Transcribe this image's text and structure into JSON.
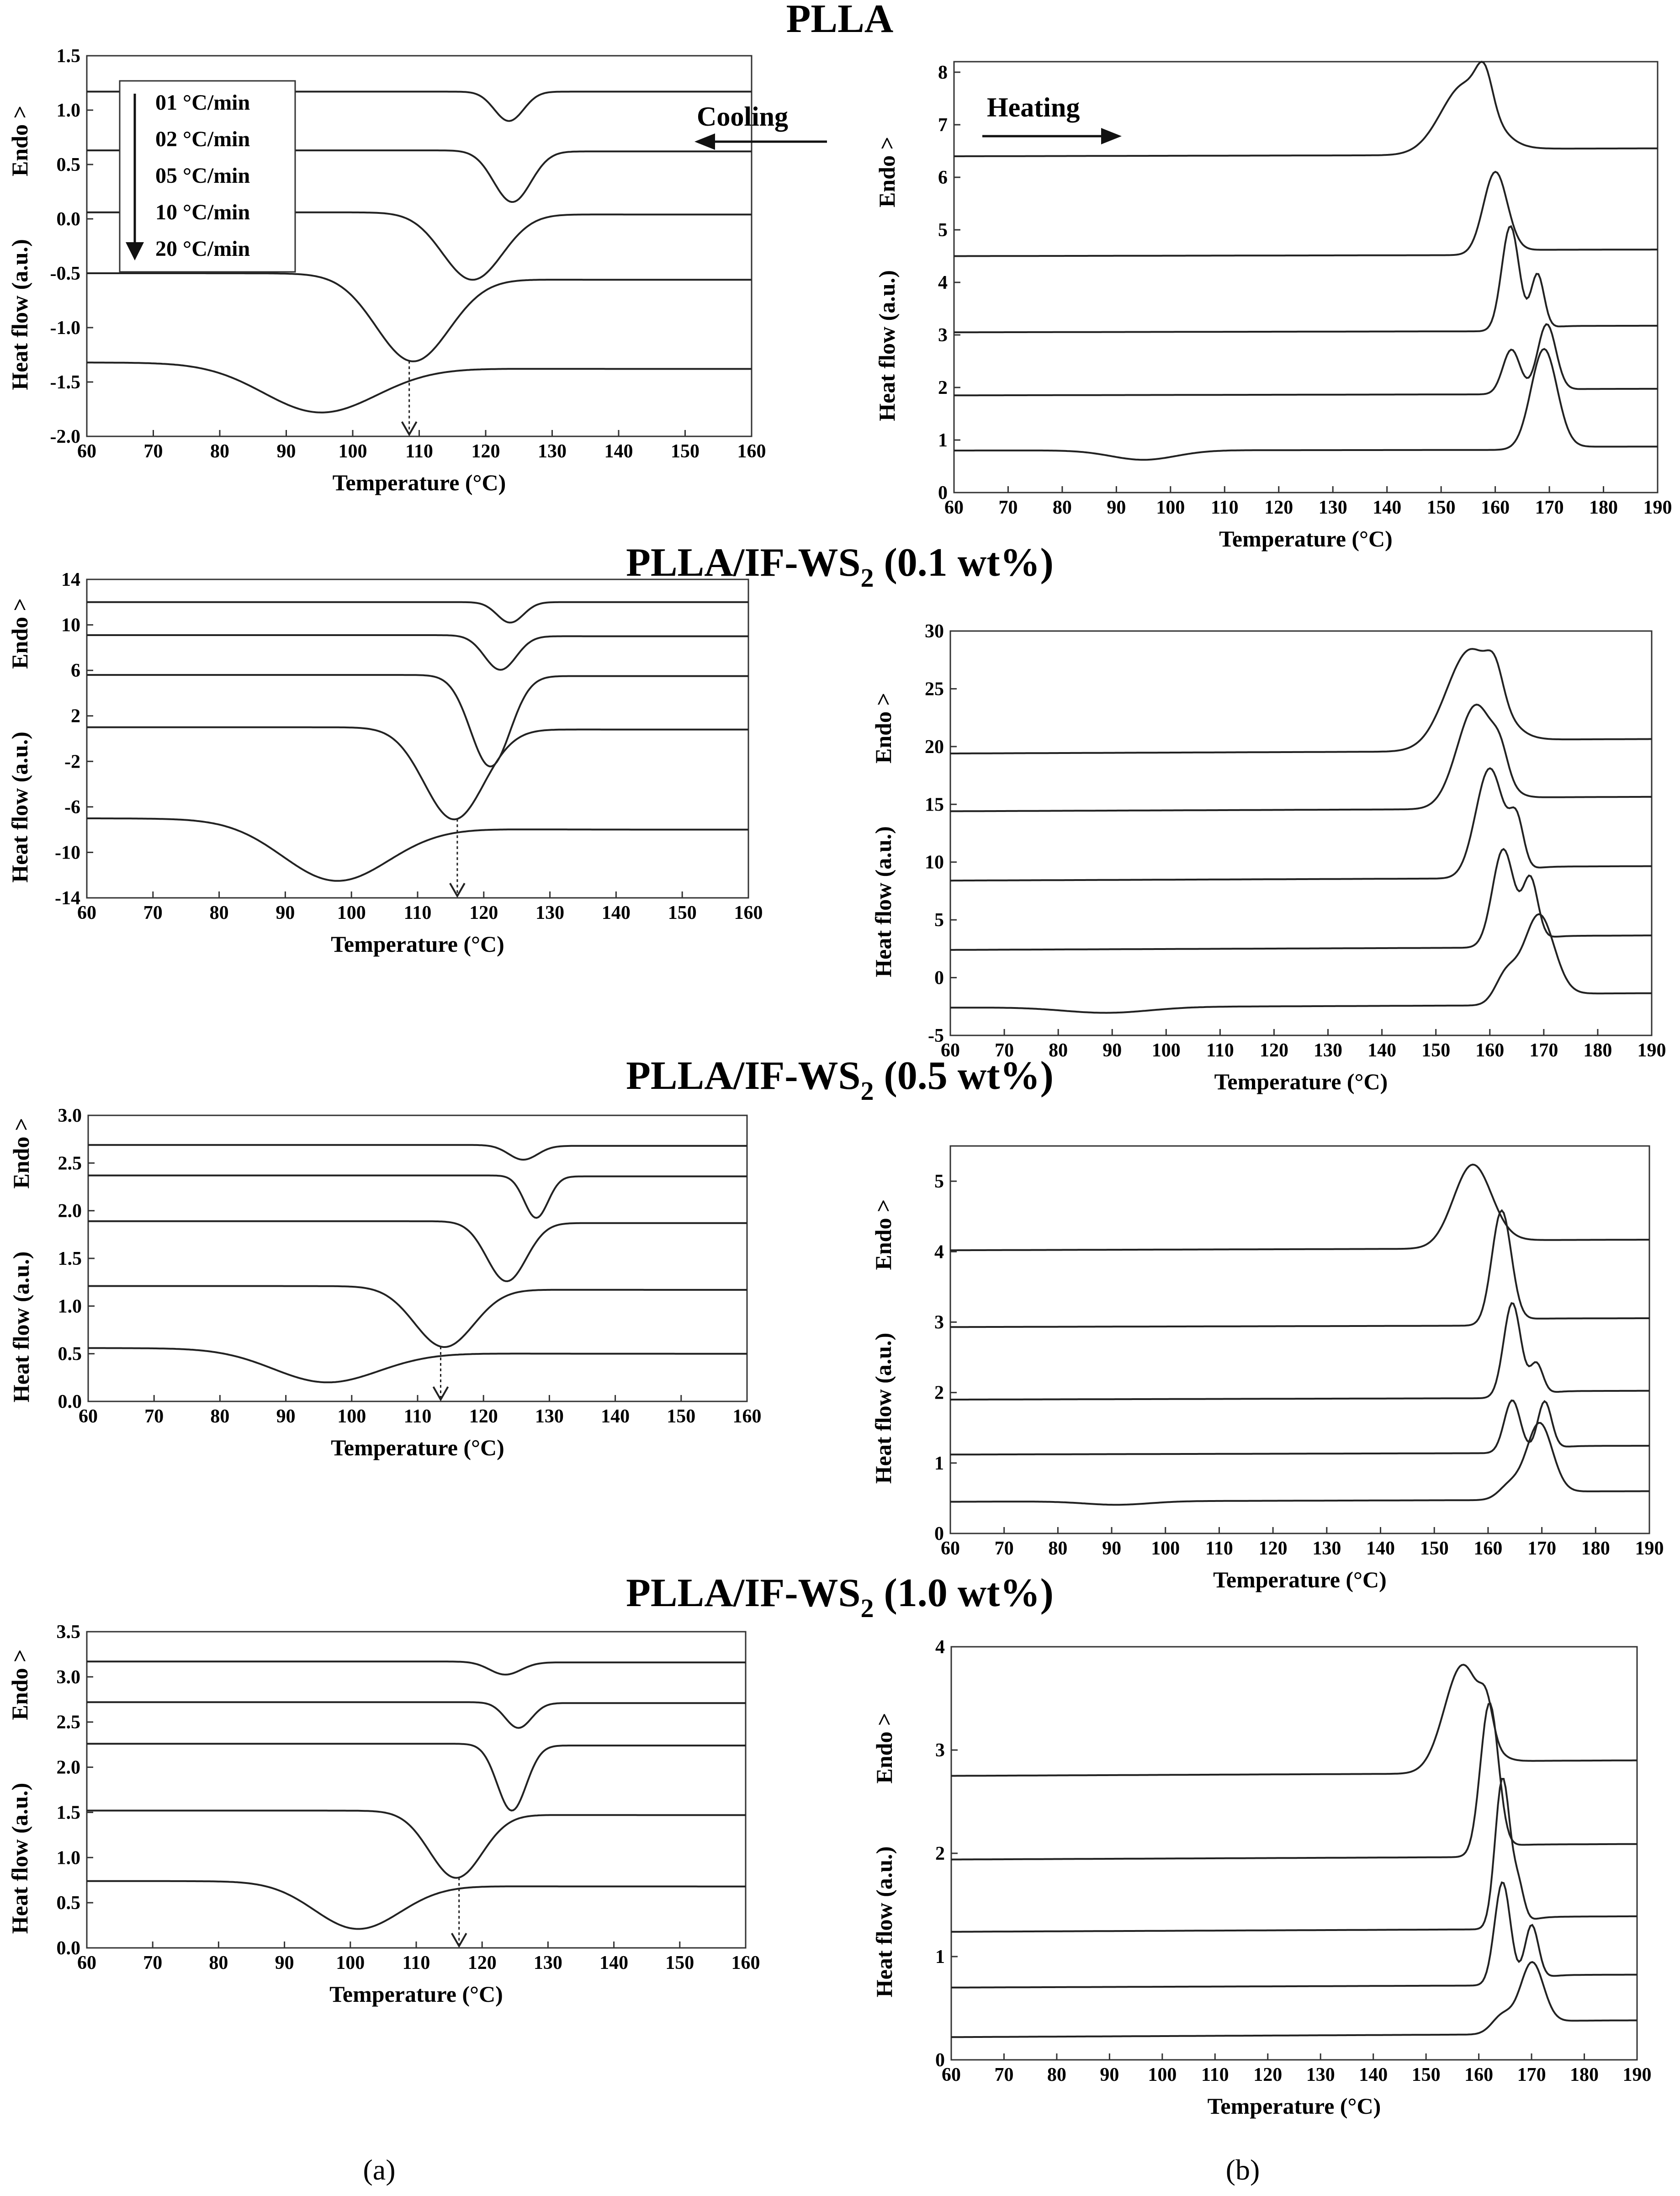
{
  "figure": {
    "panel_labels": [
      "(a)",
      "(b)"
    ],
    "colors": {
      "curve": "#222222",
      "axis": "#333333",
      "background": "#ffffff"
    },
    "legend": {
      "entries": [
        "01 °C/min",
        "02 °C/min",
        "05 °C/min",
        "10 °C/min",
        "20 °C/min"
      ]
    },
    "annotations": {
      "cooling": "Cooling",
      "heating": "Heating"
    }
  },
  "chart_data": [
    {
      "type": "line",
      "row": 0,
      "column": "a",
      "title": "PLLA",
      "title_subscript": "",
      "title_suffix": "",
      "xlabel": "Temperature (°C)",
      "ylabel": "Heat flow (a.u.)",
      "ylabel_extra": "Endo >",
      "xlim": [
        60,
        160
      ],
      "ylim": [
        -2.0,
        1.5
      ],
      "xticks": [
        60,
        70,
        80,
        90,
        100,
        110,
        120,
        130,
        140,
        150,
        160
      ],
      "yticks": [
        -2.0,
        -1.5,
        -1.0,
        -0.5,
        0.0,
        0.5,
        1.0,
        1.5
      ],
      "ytick_labels": [
        "-2.0",
        "-1.5",
        "-1.0",
        "-0.5",
        "0.0",
        "0.5",
        "1.0",
        "1.5"
      ],
      "arrow_marker_x": 108.5,
      "series": [
        {
          "name": "01 °C/min",
          "base_left": 1.17,
          "base_right": 1.17,
          "peaks": [
            {
              "x": 123.5,
              "amp": -0.27,
              "width": 2.2
            }
          ]
        },
        {
          "name": "02 °C/min",
          "base_left": 0.63,
          "base_right": 0.62,
          "peaks": [
            {
              "x": 124.0,
              "amp": -0.47,
              "width": 2.8
            }
          ]
        },
        {
          "name": "05 °C/min",
          "base_left": 0.06,
          "base_right": 0.04,
          "peaks": [
            {
              "x": 118.0,
              "amp": -0.61,
              "width": 4.5
            }
          ]
        },
        {
          "name": "10 °C/min",
          "base_left": -0.5,
          "base_right": -0.56,
          "peaks": [
            {
              "x": 109.0,
              "amp": -0.78,
              "width": 5.5
            }
          ]
        },
        {
          "name": "20 °C/min",
          "base_left": -1.32,
          "base_right": -1.38,
          "peaks": [
            {
              "x": 95.0,
              "amp": -0.43,
              "width": 8.5
            }
          ]
        }
      ]
    },
    {
      "type": "line",
      "row": 0,
      "column": "b",
      "xlabel": "Temperature (°C)",
      "ylabel": "Heat flow (a.u.)",
      "ylabel_extra": "Endo >",
      "xlim": [
        60,
        190
      ],
      "ylim": [
        0,
        8.2
      ],
      "xticks": [
        60,
        70,
        80,
        90,
        100,
        110,
        120,
        130,
        140,
        150,
        160,
        170,
        180,
        190
      ],
      "yticks": [
        0,
        1,
        2,
        3,
        4,
        5,
        6,
        7,
        8
      ],
      "ytick_labels": [
        "0",
        "1",
        "2",
        "3",
        "4",
        "5",
        "6",
        "7",
        "8"
      ],
      "series": [
        {
          "name": "01 °C/min",
          "base_left": 6.4,
          "base_right": 6.52,
          "peaks": [
            {
              "x": 154.5,
              "amp": 1.35,
              "width": 4.5
            },
            {
              "x": 158.0,
              "amp": 0.7,
              "width": 1.5
            }
          ]
        },
        {
          "name": "02 °C/min",
          "base_left": 4.5,
          "base_right": 4.6,
          "peaks": [
            {
              "x": 160.0,
              "amp": 1.55,
              "width": 2.2
            }
          ]
        },
        {
          "name": "05 °C/min",
          "base_left": 3.05,
          "base_right": 3.15,
          "peaks": [
            {
              "x": 162.8,
              "amp": 2.0,
              "width": 1.6
            },
            {
              "x": 167.8,
              "amp": 1.05,
              "width": 1.2
            }
          ]
        },
        {
          "name": "10 °C/min",
          "base_left": 1.85,
          "base_right": 1.95,
          "peaks": [
            {
              "x": 163.0,
              "amp": 0.85,
              "width": 1.6
            },
            {
              "x": 169.5,
              "amp": 1.3,
              "width": 1.7
            }
          ]
        },
        {
          "name": "20 °C/min",
          "base_left": 0.8,
          "base_right": 0.86,
          "peaks": [
            {
              "x": 95.0,
              "amp": -0.18,
              "width": 6.0
            },
            {
              "x": 169.0,
              "amp": 1.9,
              "width": 2.4
            }
          ]
        }
      ]
    },
    {
      "type": "line",
      "row": 1,
      "column": "a",
      "title": "PLLA/IF-WS",
      "title_subscript": "2",
      "title_suffix": " (0.1 wt%)",
      "xlabel": "Temperature (°C)",
      "ylabel": "Heat flow (a.u.)",
      "ylabel_extra": "Endo >",
      "xlim": [
        60,
        160
      ],
      "ylim": [
        -14,
        14
      ],
      "xticks": [
        60,
        70,
        80,
        90,
        100,
        110,
        120,
        130,
        140,
        150,
        160
      ],
      "yticks": [
        -14,
        -10,
        -6,
        -2,
        2,
        6,
        10,
        14
      ],
      "ytick_labels": [
        "-14",
        "-10",
        "-6",
        "-2",
        "2",
        "6",
        "10",
        "14"
      ],
      "arrow_marker_x": 116.0,
      "series": [
        {
          "name": "01 °C/min",
          "base_left": 12.0,
          "base_right": 12.0,
          "peaks": [
            {
              "x": 124.0,
              "amp": -1.8,
              "width": 2.0
            }
          ]
        },
        {
          "name": "02 °C/min",
          "base_left": 9.1,
          "base_right": 9.0,
          "peaks": [
            {
              "x": 122.5,
              "amp": -3.0,
              "width": 2.4
            }
          ]
        },
        {
          "name": "05 °C/min",
          "base_left": 5.6,
          "base_right": 5.5,
          "peaks": [
            {
              "x": 121.0,
              "amp": -8.0,
              "width": 3.0
            }
          ]
        },
        {
          "name": "10 °C/min",
          "base_left": 1.0,
          "base_right": 0.8,
          "peaks": [
            {
              "x": 115.5,
              "amp": -8.0,
              "width": 4.5
            }
          ]
        },
        {
          "name": "20 °C/min",
          "base_left": -7.0,
          "base_right": -8.0,
          "peaks": [
            {
              "x": 97.5,
              "amp": -5.0,
              "width": 8.0
            }
          ]
        }
      ]
    },
    {
      "type": "line",
      "row": 1,
      "column": "b",
      "xlabel": "Temperature (°C)",
      "ylabel": "Heat flow (a.u.)",
      "ylabel_extra": "Endo >",
      "xlim": [
        60,
        190
      ],
      "ylim": [
        -5,
        30
      ],
      "xticks": [
        60,
        70,
        80,
        90,
        100,
        110,
        120,
        130,
        140,
        150,
        160,
        170,
        180,
        190
      ],
      "yticks": [
        -5,
        0,
        5,
        10,
        15,
        20,
        25,
        30
      ],
      "ytick_labels": [
        "-5",
        "0",
        "5",
        "10",
        "15",
        "20",
        "25",
        "30"
      ],
      "series": [
        {
          "name": "01 °C/min",
          "base_left": 19.4,
          "base_right": 20.4,
          "peaks": [
            {
              "x": 156.5,
              "amp": 8.8,
              "width": 4.5
            },
            {
              "x": 161.0,
              "amp": 2.5,
              "width": 1.5
            }
          ]
        },
        {
          "name": "02 °C/min",
          "base_left": 14.4,
          "base_right": 15.4,
          "peaks": [
            {
              "x": 157.5,
              "amp": 9.0,
              "width": 3.5
            },
            {
              "x": 162.0,
              "amp": 2.0,
              "width": 1.4
            }
          ]
        },
        {
          "name": "05 °C/min",
          "base_left": 8.4,
          "base_right": 9.4,
          "peaks": [
            {
              "x": 160.0,
              "amp": 9.5,
              "width": 2.6
            },
            {
              "x": 165.0,
              "amp": 4.0,
              "width": 1.3
            }
          ]
        },
        {
          "name": "10 °C/min",
          "base_left": 2.4,
          "base_right": 3.4,
          "peaks": [
            {
              "x": 162.5,
              "amp": 8.5,
              "width": 2.0
            },
            {
              "x": 167.5,
              "amp": 5.5,
              "width": 1.4
            }
          ]
        },
        {
          "name": "20 °C/min",
          "base_left": -2.6,
          "base_right": -1.6,
          "peaks": [
            {
              "x": 89.0,
              "amp": -0.5,
              "width": 8.0
            },
            {
              "x": 163.0,
              "amp": 2.5,
              "width": 2.0
            },
            {
              "x": 169.0,
              "amp": 7.5,
              "width": 2.8
            }
          ]
        }
      ]
    },
    {
      "type": "line",
      "row": 2,
      "column": "a",
      "title": "PLLA/IF-WS",
      "title_subscript": "2",
      "title_suffix": " (0.5 wt%)",
      "xlabel": "Temperature (°C)",
      "ylabel": "Heat flow (a.u.)",
      "ylabel_extra": "Endo >",
      "xlim": [
        60,
        160
      ],
      "ylim": [
        0.0,
        3.0
      ],
      "xticks": [
        60,
        70,
        80,
        90,
        100,
        110,
        120,
        130,
        140,
        150,
        160
      ],
      "yticks": [
        0.0,
        0.5,
        1.0,
        1.5,
        2.0,
        2.5,
        3.0
      ],
      "ytick_labels": [
        "0.0",
        "0.5",
        "1.0",
        "1.5",
        "2.0",
        "2.5",
        "3.0"
      ],
      "arrow_marker_x": 113.5,
      "series": [
        {
          "name": "01 °C/min",
          "base_left": 2.69,
          "base_right": 2.68,
          "peaks": [
            {
              "x": 126.0,
              "amp": -0.15,
              "width": 2.2
            }
          ]
        },
        {
          "name": "02 °C/min",
          "base_left": 2.37,
          "base_right": 2.36,
          "peaks": [
            {
              "x": 128.0,
              "amp": -0.44,
              "width": 1.8
            }
          ]
        },
        {
          "name": "05 °C/min",
          "base_left": 1.89,
          "base_right": 1.87,
          "peaks": [
            {
              "x": 123.5,
              "amp": -0.62,
              "width": 3.0
            }
          ]
        },
        {
          "name": "10 °C/min",
          "base_left": 1.21,
          "base_right": 1.17,
          "peaks": [
            {
              "x": 114.0,
              "amp": -0.62,
              "width": 4.5
            }
          ]
        },
        {
          "name": "20 °C/min",
          "base_left": 0.56,
          "base_right": 0.5,
          "peaks": [
            {
              "x": 96.0,
              "amp": -0.33,
              "width": 8.0
            }
          ]
        }
      ]
    },
    {
      "type": "line",
      "row": 2,
      "column": "b",
      "xlabel": "Temperature (°C)",
      "ylabel": "Heat flow (a.u.)",
      "ylabel_extra": "Endo >",
      "xlim": [
        60,
        190
      ],
      "ylim": [
        0,
        5.5
      ],
      "xticks": [
        60,
        70,
        80,
        90,
        100,
        110,
        120,
        130,
        140,
        150,
        160,
        170,
        180,
        190
      ],
      "yticks": [
        0,
        1,
        2,
        3,
        4,
        5
      ],
      "ytick_labels": [
        "0",
        "1",
        "2",
        "3",
        "4",
        "5"
      ],
      "series": [
        {
          "name": "01 °C/min",
          "base_left": 4.02,
          "base_right": 4.14,
          "peaks": [
            {
              "x": 157.0,
              "amp": 1.15,
              "width": 3.5
            }
          ]
        },
        {
          "name": "02 °C/min",
          "base_left": 2.93,
          "base_right": 3.03,
          "peaks": [
            {
              "x": 162.5,
              "amp": 1.6,
              "width": 1.8
            }
          ]
        },
        {
          "name": "05 °C/min",
          "base_left": 1.9,
          "base_right": 2.0,
          "peaks": [
            {
              "x": 164.5,
              "amp": 1.35,
              "width": 1.6
            },
            {
              "x": 169.0,
              "amp": 0.45,
              "width": 1.2
            }
          ]
        },
        {
          "name": "10 °C/min",
          "base_left": 1.12,
          "base_right": 1.22,
          "peaks": [
            {
              "x": 164.5,
              "amp": 0.75,
              "width": 1.5
            },
            {
              "x": 170.5,
              "amp": 0.7,
              "width": 1.3
            }
          ]
        },
        {
          "name": "20 °C/min",
          "base_left": 0.45,
          "base_right": 0.57,
          "peaks": [
            {
              "x": 91.0,
              "amp": -0.05,
              "width": 6.0
            },
            {
              "x": 164.0,
              "amp": 0.2,
              "width": 2.0
            },
            {
              "x": 169.5,
              "amp": 1.05,
              "width": 2.4
            }
          ]
        }
      ]
    },
    {
      "type": "line",
      "row": 3,
      "column": "a",
      "title": "PLLA/IF-WS",
      "title_subscript": "2",
      "title_suffix": " (1.0 wt%)",
      "xlabel": "Temperature (°C)",
      "ylabel": "Heat flow (a.u.)",
      "ylabel_extra": "Endo >",
      "xlim": [
        60,
        160
      ],
      "ylim": [
        0.0,
        3.5
      ],
      "xticks": [
        60,
        70,
        80,
        90,
        100,
        110,
        120,
        130,
        140,
        150,
        160
      ],
      "yticks": [
        0.0,
        0.5,
        1.0,
        1.5,
        2.0,
        2.5,
        3.0,
        3.5
      ],
      "ytick_labels": [
        "0.0",
        "0.5",
        "1.0",
        "1.5",
        "2.0",
        "2.5",
        "3.0",
        "3.5"
      ],
      "arrow_marker_x": 116.5,
      "series": [
        {
          "name": "01 °C/min",
          "base_left": 3.17,
          "base_right": 3.16,
          "peaks": [
            {
              "x": 123.5,
              "amp": -0.14,
              "width": 2.4
            }
          ]
        },
        {
          "name": "02 °C/min",
          "base_left": 2.72,
          "base_right": 2.71,
          "peaks": [
            {
              "x": 125.5,
              "amp": -0.28,
              "width": 2.0
            }
          ]
        },
        {
          "name": "05 °C/min",
          "base_left": 2.26,
          "base_right": 2.24,
          "peaks": [
            {
              "x": 124.5,
              "amp": -0.73,
              "width": 2.2
            }
          ]
        },
        {
          "name": "10 °C/min",
          "base_left": 1.52,
          "base_right": 1.47,
          "peaks": [
            {
              "x": 116.0,
              "amp": -0.72,
              "width": 4.0
            }
          ]
        },
        {
          "name": "20 °C/min",
          "base_left": 0.74,
          "base_right": 0.68,
          "peaks": [
            {
              "x": 101.0,
              "amp": -0.5,
              "width": 6.5
            }
          ]
        }
      ]
    },
    {
      "type": "line",
      "row": 3,
      "column": "b",
      "xlabel": "Temperature (°C)",
      "ylabel": "Heat flow (a.u.)",
      "ylabel_extra": "Endo >",
      "xlim": [
        60,
        190
      ],
      "ylim": [
        0,
        4
      ],
      "xticks": [
        60,
        70,
        80,
        90,
        100,
        110,
        120,
        130,
        140,
        150,
        160,
        170,
        180,
        190
      ],
      "yticks": [
        0,
        1,
        2,
        3,
        4
      ],
      "ytick_labels": [
        "0",
        "1",
        "2",
        "3",
        "4"
      ],
      "series": [
        {
          "name": "01 °C/min",
          "base_left": 2.75,
          "base_right": 2.87,
          "peaks": [
            {
              "x": 157.0,
              "amp": 1.05,
              "width": 3.5
            },
            {
              "x": 161.5,
              "amp": 0.3,
              "width": 1.2
            }
          ]
        },
        {
          "name": "02 °C/min",
          "base_left": 1.94,
          "base_right": 2.06,
          "peaks": [
            {
              "x": 162.0,
              "amp": 1.45,
              "width": 1.7
            }
          ]
        },
        {
          "name": "05 °C/min",
          "base_left": 1.24,
          "base_right": 1.36,
          "peaks": [
            {
              "x": 164.5,
              "amp": 1.45,
              "width": 1.4
            },
            {
              "x": 167.5,
              "amp": 0.35,
              "width": 1.1
            }
          ]
        },
        {
          "name": "10 °C/min",
          "base_left": 0.7,
          "base_right": 0.8,
          "peaks": [
            {
              "x": 164.5,
              "amp": 1.0,
              "width": 1.5
            },
            {
              "x": 170.0,
              "amp": 0.55,
              "width": 1.3
            }
          ]
        },
        {
          "name": "20 °C/min",
          "base_left": 0.22,
          "base_right": 0.35,
          "peaks": [
            {
              "x": 164.5,
              "amp": 0.18,
              "width": 2.0
            },
            {
              "x": 170.0,
              "amp": 0.65,
              "width": 2.2
            }
          ]
        }
      ]
    }
  ]
}
